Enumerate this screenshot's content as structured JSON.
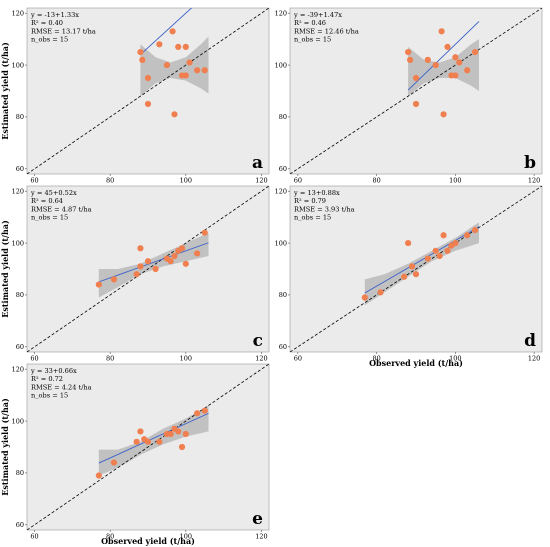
{
  "axis_labels": {
    "y": "Estimated yield (t/ha)",
    "x": "Observed yield (t/ha)"
  },
  "chart_data": [
    {
      "type": "scatter",
      "panel": "a",
      "stats": [
        "y = -13+1.33x",
        "R² = 0.40",
        "RMSE = 13.17 t/ha",
        "n_obs = 15"
      ],
      "xlim": [
        58,
        122
      ],
      "ylim": [
        58,
        122
      ],
      "xticks": [
        60,
        80,
        100,
        120
      ],
      "yticks": [
        60,
        80,
        100,
        120
      ],
      "show_xlabel": false,
      "show_ylabel": true,
      "show_xticks": true,
      "show_yticks": true,
      "points": [
        [
          88,
          105
        ],
        [
          88.5,
          102
        ],
        [
          90,
          85
        ],
        [
          90,
          95
        ],
        [
          93,
          108
        ],
        [
          95,
          100
        ],
        [
          96.5,
          113
        ],
        [
          97,
          81
        ],
        [
          98,
          107
        ],
        [
          99,
          96
        ],
        [
          100,
          96
        ],
        [
          100,
          107
        ],
        [
          103,
          98
        ],
        [
          105,
          98
        ],
        [
          101,
          101
        ]
      ],
      "fit": {
        "intercept": -13,
        "slope": 1.33
      },
      "ci_band": {
        "x": [
          88,
          92,
          96,
          100,
          104,
          106
        ],
        "lower": [
          88,
          93,
          95,
          94,
          91,
          89
        ],
        "upper": [
          108,
          103,
          101,
          103,
          108,
          111
        ]
      },
      "reference_line": "1:1"
    },
    {
      "type": "scatter",
      "panel": "b",
      "stats": [
        "y = -39+1.47x",
        "R² = 0.46",
        "RMSE = 12.46 t/ha",
        "n_obs = 15"
      ],
      "xlim": [
        58,
        122
      ],
      "ylim": [
        58,
        122
      ],
      "xticks": [
        60,
        80,
        100,
        120
      ],
      "yticks": [
        60,
        80,
        100,
        120
      ],
      "show_xlabel": false,
      "show_ylabel": false,
      "show_xticks": true,
      "show_yticks": true,
      "points": [
        [
          88,
          105
        ],
        [
          88.5,
          102
        ],
        [
          90,
          85
        ],
        [
          90,
          95
        ],
        [
          93,
          102
        ],
        [
          95,
          100
        ],
        [
          96.5,
          113
        ],
        [
          97,
          81
        ],
        [
          98,
          107
        ],
        [
          99,
          96
        ],
        [
          100,
          96
        ],
        [
          100,
          103
        ],
        [
          103,
          98
        ],
        [
          105,
          105
        ],
        [
          101,
          101
        ]
      ],
      "fit": {
        "intercept": -39,
        "slope": 1.47
      },
      "ci_band": {
        "x": [
          88,
          92,
          96,
          100,
          104,
          106
        ],
        "lower": [
          88,
          93,
          95,
          95,
          92,
          90
        ],
        "upper": [
          107,
          102,
          101,
          103,
          108,
          110
        ]
      },
      "reference_line": "1:1"
    },
    {
      "type": "scatter",
      "panel": "c",
      "stats": [
        "y = 45+0.52x",
        "R² = 0.64",
        "RMSE = 4.87 t/ha",
        "n_obs = 15"
      ],
      "xlim": [
        58,
        122
      ],
      "ylim": [
        58,
        122
      ],
      "xticks": [
        60,
        80,
        100,
        120
      ],
      "yticks": [
        60,
        80,
        100,
        120
      ],
      "show_xlabel": false,
      "show_ylabel": true,
      "show_xticks": true,
      "show_yticks": true,
      "points": [
        [
          77,
          84
        ],
        [
          81,
          86
        ],
        [
          87,
          88
        ],
        [
          88,
          91
        ],
        [
          88,
          98
        ],
        [
          90,
          93
        ],
        [
          92,
          90
        ],
        [
          95,
          94
        ],
        [
          96,
          93
        ],
        [
          97,
          95
        ],
        [
          98,
          97
        ],
        [
          99,
          98
        ],
        [
          100,
          92
        ],
        [
          103,
          96
        ],
        [
          105,
          104
        ]
      ],
      "fit": {
        "intercept": 45,
        "slope": 0.52
      },
      "ci_band": {
        "x": [
          77,
          82,
          88,
          94,
          100,
          106
        ],
        "lower": [
          79,
          83,
          88,
          91,
          93,
          95
        ],
        "upper": [
          90,
          90,
          92,
          96,
          100,
          104
        ]
      },
      "reference_line": "1:1"
    },
    {
      "type": "scatter",
      "panel": "d",
      "stats": [
        "y = 13+0.88x",
        "R² = 0.79",
        "RMSE = 3.93 t/ha",
        "n_obs = 15"
      ],
      "xlim": [
        58,
        122
      ],
      "ylim": [
        58,
        122
      ],
      "xticks": [
        60,
        80,
        100,
        120
      ],
      "yticks": [
        60,
        80,
        100,
        120
      ],
      "show_xlabel": true,
      "show_ylabel": false,
      "show_xticks": true,
      "show_yticks": true,
      "points": [
        [
          77,
          79
        ],
        [
          81,
          81
        ],
        [
          87,
          87
        ],
        [
          88,
          100
        ],
        [
          89,
          91
        ],
        [
          90,
          88
        ],
        [
          93,
          94
        ],
        [
          95,
          97
        ],
        [
          96,
          95
        ],
        [
          97,
          103
        ],
        [
          98,
          97
        ],
        [
          99,
          99
        ],
        [
          100,
          100
        ],
        [
          103,
          103
        ],
        [
          105,
          105
        ]
      ],
      "fit": {
        "intercept": 13,
        "slope": 0.88
      },
      "ci_band": {
        "x": [
          77,
          82,
          88,
          94,
          100,
          106
        ],
        "lower": [
          76,
          81,
          87,
          93,
          97,
          100
        ],
        "upper": [
          86,
          88,
          92,
          97,
          102,
          108
        ]
      },
      "reference_line": "1:1"
    },
    {
      "type": "scatter",
      "panel": "e",
      "stats": [
        "y = 33+0.66x",
        "R² = 0.72",
        "RMSE = 4.24 t/ha",
        "n_obs = 15"
      ],
      "xlim": [
        58,
        122
      ],
      "ylim": [
        58,
        122
      ],
      "xticks": [
        60,
        80,
        100,
        120
      ],
      "yticks": [
        60,
        80,
        100,
        120
      ],
      "show_xlabel": true,
      "show_ylabel": true,
      "show_xticks": true,
      "show_yticks": true,
      "points": [
        [
          77,
          79
        ],
        [
          81,
          84
        ],
        [
          87,
          92
        ],
        [
          88,
          96
        ],
        [
          89,
          93
        ],
        [
          90,
          92
        ],
        [
          93,
          92
        ],
        [
          95,
          95
        ],
        [
          96,
          95
        ],
        [
          97,
          97
        ],
        [
          98,
          96
        ],
        [
          99,
          90
        ],
        [
          100,
          95
        ],
        [
          103,
          103
        ],
        [
          105,
          104
        ]
      ],
      "fit": {
        "intercept": 33,
        "slope": 0.66
      },
      "ci_band": {
        "x": [
          77,
          82,
          88,
          94,
          100,
          106
        ],
        "lower": [
          79,
          82,
          87,
          91,
          94,
          96
        ],
        "upper": [
          89,
          89,
          92,
          97,
          101,
          106
        ]
      },
      "reference_line": "1:1"
    }
  ],
  "colors": {
    "panel_bg": "#ebebeb",
    "point": "#f07f4f",
    "fit_line": "#3a5fc8",
    "ci_band": "#bdbdbd",
    "reference": "#000000"
  }
}
